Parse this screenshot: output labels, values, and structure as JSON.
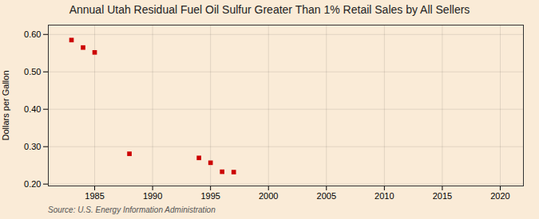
{
  "chart_data": {
    "type": "scatter",
    "title": "Annual Utah Residual Fuel Oil Sulfur Greater Than 1% Retail Sales by All Sellers",
    "ylabel": "Dollars per Gallon",
    "source": "Source: U.S. Energy Information Administration",
    "x": [
      1983,
      1984,
      1985,
      1988,
      1994,
      1995,
      1996,
      1997
    ],
    "values": [
      0.585,
      0.565,
      0.552,
      0.281,
      0.27,
      0.257,
      0.233,
      0.232
    ],
    "color": "#cc0000",
    "marker": "square",
    "grid": true,
    "xlim": [
      1981,
      2022
    ],
    "ylim": [
      0.195,
      0.625
    ],
    "xticks": [
      1985,
      1990,
      1995,
      2000,
      2005,
      2010,
      2015,
      2020
    ],
    "yticks": [
      {
        "value": 0.2,
        "label": "0.20"
      },
      {
        "value": 0.3,
        "label": "0.30"
      },
      {
        "value": 0.4,
        "label": "0.40"
      },
      {
        "value": 0.5,
        "label": "0.50"
      },
      {
        "value": 0.6,
        "label": "0.60"
      }
    ]
  }
}
